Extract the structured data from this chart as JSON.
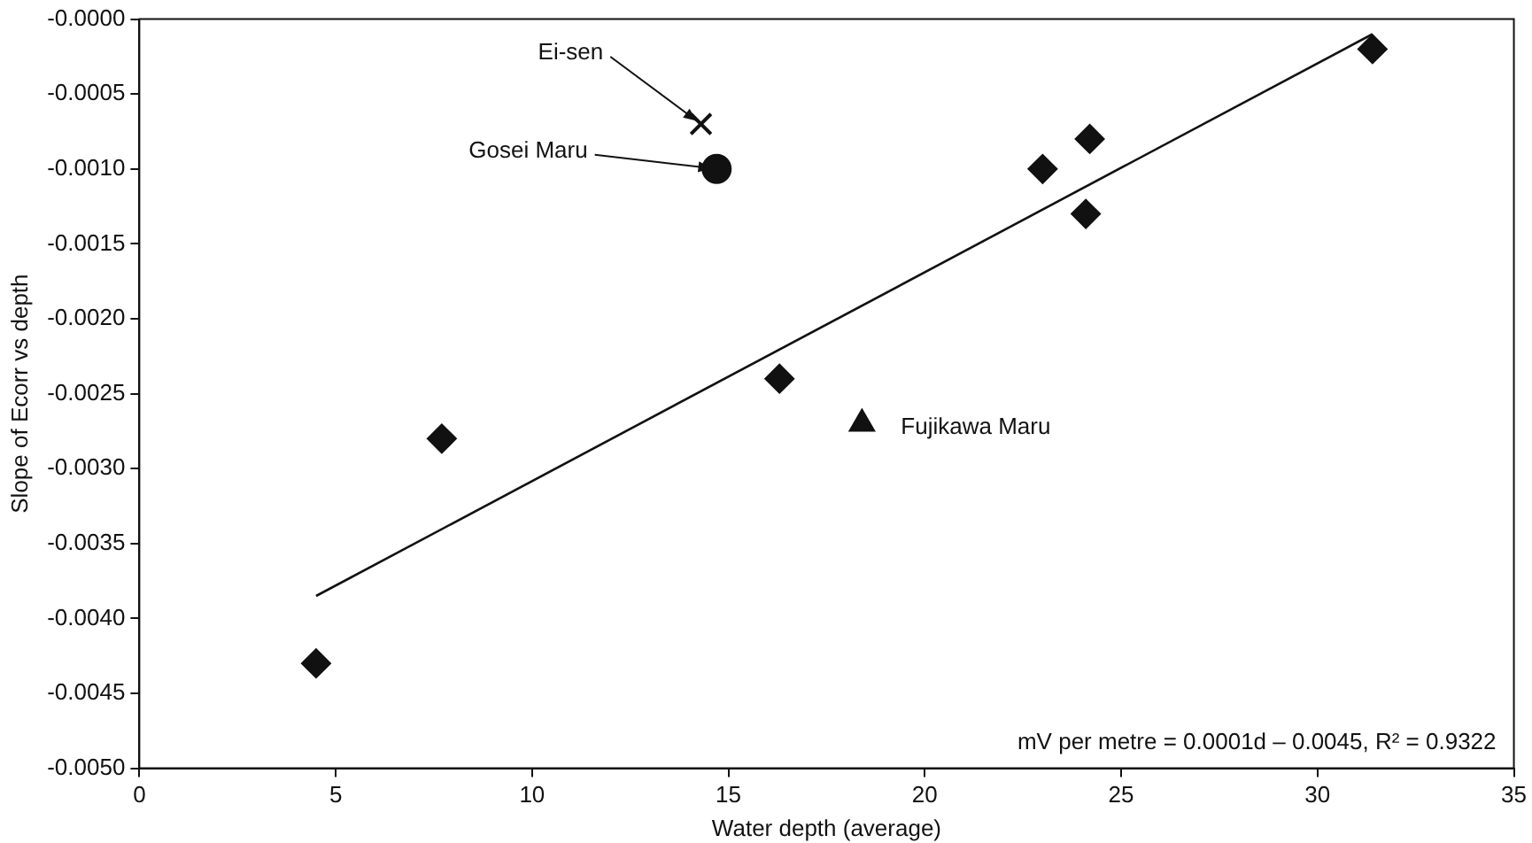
{
  "chart_data": {
    "type": "scatter",
    "xlabel": "Water depth (average)",
    "ylabel": "Slope of Ecorr vs depth",
    "series": [
      {
        "marker": "diamond",
        "color": "#111111",
        "x": [
          4.5,
          7.7,
          16.3,
          23.0,
          24.2,
          24.1,
          31.4
        ],
        "values": [
          -0.0043,
          -0.0028,
          -0.0024,
          -0.001,
          -0.0008,
          -0.0013,
          -0.0002
        ]
      },
      {
        "marker": "cross",
        "color": "#111111",
        "x": [
          14.3
        ],
        "values": [
          -0.0007
        ]
      },
      {
        "marker": "circle",
        "color": "#111111",
        "x": [
          14.7
        ],
        "values": [
          -0.001
        ]
      },
      {
        "marker": "triangle",
        "color": "#111111",
        "x": [
          18.4
        ],
        "values": [
          -0.0027
        ]
      },
      {
        "type": "line",
        "marker": "none",
        "color": "#111111",
        "x": [
          4.5,
          31.4
        ],
        "values": [
          -0.00385,
          -0.0001
        ]
      }
    ],
    "annotations": [
      {
        "text": "Ei-sen",
        "x": 14.3,
        "y": -0.0007
      },
      {
        "text": "Gosei Maru",
        "x": 14.7,
        "y": -0.001
      },
      {
        "text": "Fujikawa Maru",
        "x": 18.4,
        "y": -0.0027
      },
      "mV per metre = 0.0001d – 0.0045, R² = 0.9322"
    ],
    "xlim": [
      0,
      35
    ],
    "xticks": [
      0,
      5,
      10,
      15,
      20,
      25,
      30,
      35
    ],
    "ylim": [
      -0.005,
      0
    ],
    "yticks": [
      {
        "value": 0,
        "label": "-0.0000"
      },
      -0.0005,
      {
        "value": -0.001,
        "label": "-0.0010"
      },
      -0.0015,
      {
        "value": -0.002,
        "label": "-0.0020"
      },
      -0.0025,
      {
        "value": -0.003,
        "label": "-0.0030"
      },
      -0.0035,
      {
        "value": -0.004,
        "label": "-0.0040"
      },
      -0.0045,
      {
        "value": -0.005,
        "label": "-0.0050"
      }
    ],
    "grid": false,
    "legend": false
  }
}
